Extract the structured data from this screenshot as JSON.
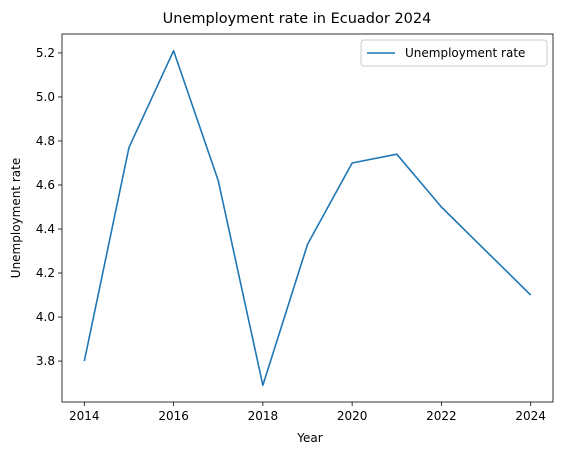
{
  "chart_data": {
    "type": "line",
    "title": "Unemployment rate in Ecuador 2024",
    "xlabel": "Year",
    "ylabel": "Unemployment rate",
    "x": [
      2014,
      2015,
      2016,
      2017,
      2018,
      2019,
      2020,
      2021,
      2022,
      2023,
      2024
    ],
    "series": [
      {
        "name": "Unemployment rate",
        "values": [
          3.8,
          4.77,
          5.21,
          4.62,
          3.69,
          4.33,
          4.7,
          4.74,
          4.5,
          4.3,
          4.1
        ],
        "color": "#1f77b4"
      }
    ],
    "xticks": [
      "2014",
      "2016",
      "2018",
      "2020",
      "2022",
      "2024"
    ],
    "yticks": [
      "3.8",
      "4.0",
      "4.2",
      "4.4",
      "4.6",
      "4.8",
      "5.0",
      "5.2"
    ],
    "xlim": [
      2013.5,
      2024.5
    ],
    "ylim": [
      3.614,
      5.286
    ],
    "grid": false,
    "legend_position": "top-right"
  }
}
